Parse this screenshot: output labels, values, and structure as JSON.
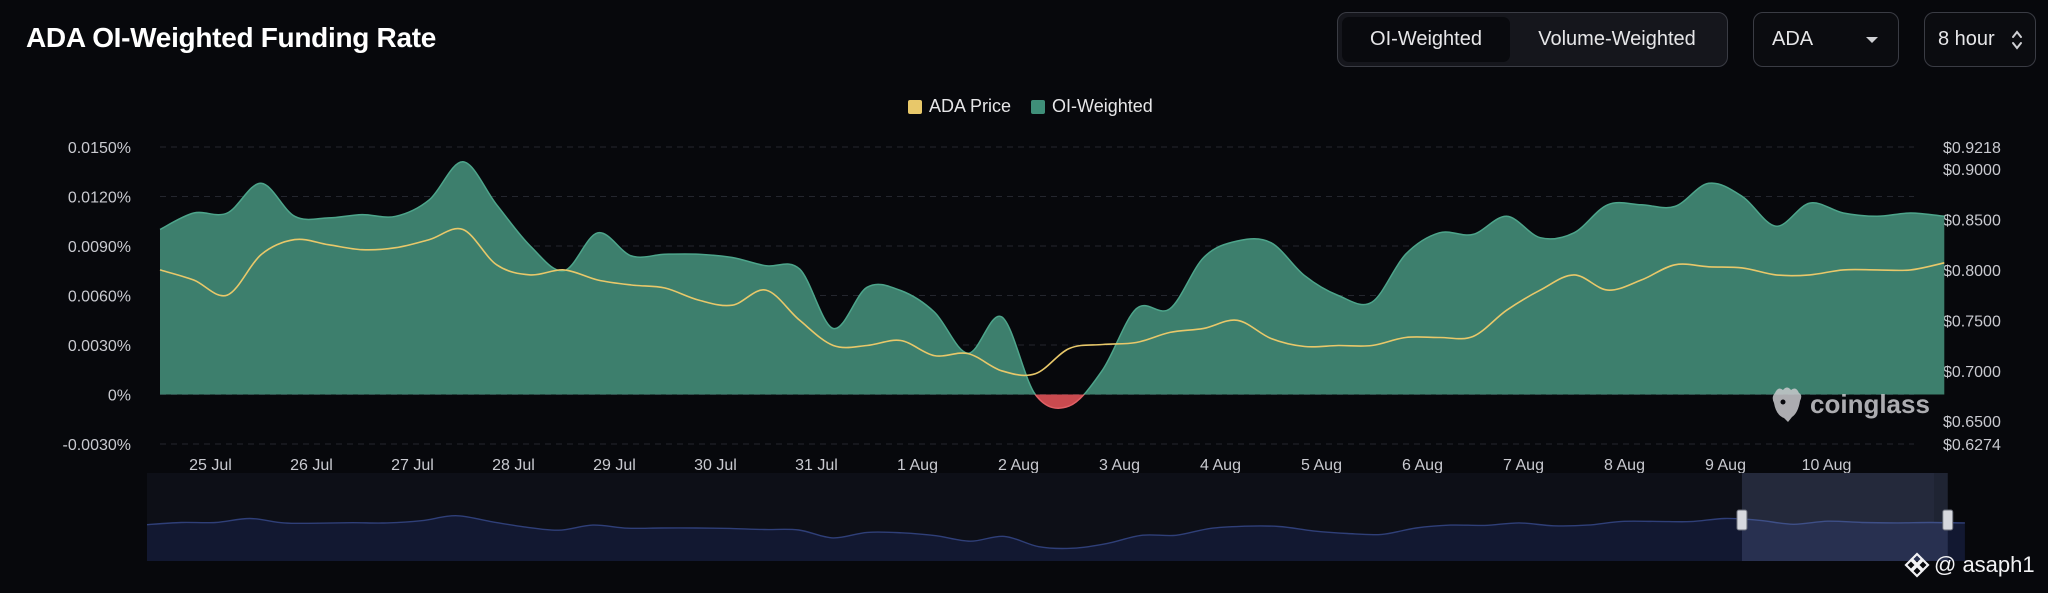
{
  "header": {
    "title": "ADA OI-Weighted Funding Rate",
    "tabs": [
      "OI-Weighted",
      "Volume-Weighted"
    ],
    "active_tab": "OI-Weighted",
    "coin_select": "ADA",
    "interval_select": "8 hour"
  },
  "legend": [
    {
      "label": "ADA Price",
      "color": "#e8c86a"
    },
    {
      "label": "OI-Weighted",
      "color": "#3f8f79"
    }
  ],
  "watermark": "coinglass",
  "credit": "@ asaph1",
  "colors": {
    "background": "#07080c",
    "area_positive": "#3d7f6d",
    "area_negative": "#c94a4f",
    "price_line": "#e8c86a",
    "navigator_line": "#2f3f78"
  },
  "chart_data": {
    "type": "area",
    "title": "ADA OI-Weighted Funding Rate",
    "x_ticks": [
      "25 Jul",
      "26 Jul",
      "27 Jul",
      "28 Jul",
      "29 Jul",
      "30 Jul",
      "31 Jul",
      "1 Aug",
      "2 Aug",
      "3 Aug",
      "4 Aug",
      "5 Aug",
      "6 Aug",
      "7 Aug",
      "8 Aug",
      "9 Aug",
      "10 Aug"
    ],
    "y_left_ticks": [
      "0.0150%",
      "0.0120%",
      "0.0090%",
      "0.0060%",
      "0.0030%",
      "0%",
      "-0.0030%"
    ],
    "y_left_range": [
      -0.003,
      0.015
    ],
    "y_right_ticks": [
      "$0.9218",
      "$0.9000",
      "$0.8500",
      "$0.8000",
      "$0.7500",
      "$0.7000",
      "$0.6500",
      "$0.6274"
    ],
    "y_right_range": [
      0.6274,
      0.9218
    ],
    "x_range_days": [
      "24 Jul",
      "10 Aug"
    ],
    "series": [
      {
        "name": "OI-Weighted",
        "unit": "%",
        "x": [
          "24 Jul 12:00",
          "24 Jul 20:00",
          "25 Jul 04:00",
          "25 Jul 12:00",
          "25 Jul 20:00",
          "26 Jul 04:00",
          "26 Jul 12:00",
          "26 Jul 20:00",
          "27 Jul 04:00",
          "27 Jul 12:00",
          "27 Jul 20:00",
          "28 Jul 04:00",
          "28 Jul 12:00",
          "28 Jul 20:00",
          "29 Jul 04:00",
          "29 Jul 12:00",
          "29 Jul 20:00",
          "30 Jul 04:00",
          "30 Jul 12:00",
          "30 Jul 20:00",
          "31 Jul 04:00",
          "31 Jul 12:00",
          "31 Jul 20:00",
          "1 Aug 04:00",
          "1 Aug 12:00",
          "1 Aug 20:00",
          "2 Aug 04:00",
          "2 Aug 12:00",
          "2 Aug 20:00",
          "3 Aug 04:00",
          "3 Aug 12:00",
          "3 Aug 20:00",
          "4 Aug 04:00",
          "4 Aug 12:00",
          "4 Aug 20:00",
          "5 Aug 04:00",
          "5 Aug 12:00",
          "5 Aug 20:00",
          "6 Aug 04:00",
          "6 Aug 12:00",
          "6 Aug 20:00",
          "7 Aug 04:00",
          "7 Aug 12:00",
          "7 Aug 20:00",
          "8 Aug 04:00",
          "8 Aug 12:00",
          "8 Aug 20:00",
          "9 Aug 04:00",
          "9 Aug 12:00",
          "9 Aug 20:00",
          "10 Aug 04:00",
          "10 Aug 12:00",
          "10 Aug 20:00",
          "11 Aug 04:00"
        ],
        "values": [
          0.01,
          0.011,
          0.011,
          0.0128,
          0.0108,
          0.0107,
          0.0109,
          0.0108,
          0.0118,
          0.0141,
          0.0115,
          0.009,
          0.0075,
          0.0098,
          0.0084,
          0.0085,
          0.0085,
          0.0083,
          0.0078,
          0.0076,
          0.004,
          0.0065,
          0.0063,
          0.005,
          0.0025,
          0.0047,
          0.0,
          -0.0007,
          0.0015,
          0.0052,
          0.0052,
          0.0083,
          0.0093,
          0.0092,
          0.0072,
          0.006,
          0.0056,
          0.0085,
          0.0098,
          0.0097,
          0.0108,
          0.0095,
          0.0098,
          0.0115,
          0.0115,
          0.0114,
          0.0128,
          0.012,
          0.0102,
          0.0116,
          0.011,
          0.0108,
          0.011,
          0.0108
        ]
      },
      {
        "name": "ADA Price",
        "unit": "$",
        "x": [
          "24 Jul 12:00",
          "24 Jul 20:00",
          "25 Jul 04:00",
          "25 Jul 12:00",
          "25 Jul 20:00",
          "26 Jul 04:00",
          "26 Jul 12:00",
          "26 Jul 20:00",
          "27 Jul 04:00",
          "27 Jul 12:00",
          "27 Jul 20:00",
          "28 Jul 04:00",
          "28 Jul 12:00",
          "28 Jul 20:00",
          "29 Jul 04:00",
          "29 Jul 12:00",
          "29 Jul 20:00",
          "30 Jul 04:00",
          "30 Jul 12:00",
          "30 Jul 20:00",
          "31 Jul 04:00",
          "31 Jul 12:00",
          "31 Jul 20:00",
          "1 Aug 04:00",
          "1 Aug 12:00",
          "1 Aug 20:00",
          "2 Aug 04:00",
          "2 Aug 12:00",
          "2 Aug 20:00",
          "3 Aug 04:00",
          "3 Aug 12:00",
          "3 Aug 20:00",
          "4 Aug 04:00",
          "4 Aug 12:00",
          "4 Aug 20:00",
          "5 Aug 04:00",
          "5 Aug 12:00",
          "5 Aug 20:00",
          "6 Aug 04:00",
          "6 Aug 12:00",
          "6 Aug 20:00",
          "7 Aug 04:00",
          "7 Aug 12:00",
          "7 Aug 20:00",
          "8 Aug 04:00",
          "8 Aug 12:00",
          "8 Aug 20:00",
          "9 Aug 04:00",
          "9 Aug 12:00",
          "9 Aug 20:00",
          "10 Aug 04:00",
          "10 Aug 12:00",
          "10 Aug 20:00",
          "11 Aug 04:00"
        ],
        "values": [
          0.8,
          0.79,
          0.775,
          0.815,
          0.83,
          0.825,
          0.82,
          0.822,
          0.83,
          0.84,
          0.805,
          0.795,
          0.8,
          0.79,
          0.785,
          0.782,
          0.77,
          0.765,
          0.78,
          0.75,
          0.725,
          0.725,
          0.73,
          0.715,
          0.717,
          0.7,
          0.697,
          0.722,
          0.726,
          0.728,
          0.738,
          0.742,
          0.75,
          0.732,
          0.724,
          0.725,
          0.725,
          0.733,
          0.733,
          0.734,
          0.76,
          0.78,
          0.795,
          0.78,
          0.79,
          0.805,
          0.803,
          0.802,
          0.795,
          0.795,
          0.8,
          0.8,
          0.8,
          0.807
        ]
      }
    ],
    "grid": true,
    "legend_position": "top-center",
    "navigator": {
      "selected_range": [
        "9 Aug",
        "11 Aug"
      ]
    }
  }
}
